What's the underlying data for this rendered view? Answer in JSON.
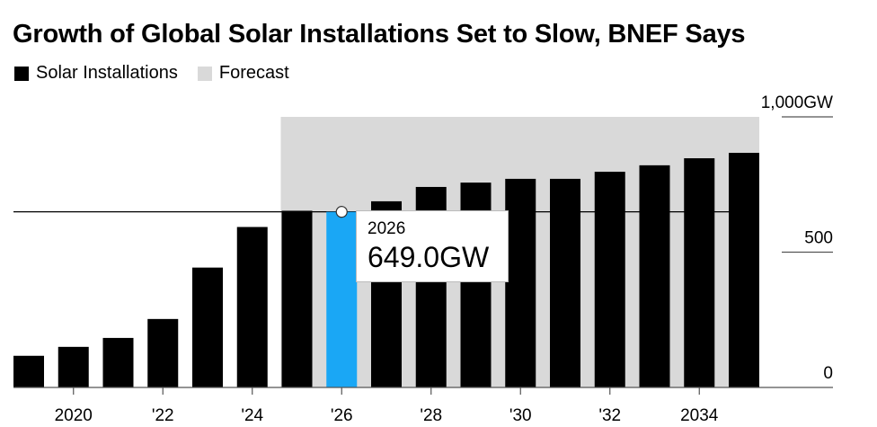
{
  "title": "Growth of Global Solar Installations Set to Slow, BNEF Says",
  "legend": [
    {
      "label": "Solar Installations",
      "color": "#000000"
    },
    {
      "label": "Forecast",
      "color": "#d9d9d9"
    }
  ],
  "tooltip": {
    "year": "2026",
    "value": "649.0GW"
  },
  "colors": {
    "bar": "#000000",
    "highlight": "#1aa7f5",
    "forecast_band": "#d9d9d9"
  },
  "chart_data": {
    "type": "bar",
    "title": "Growth of Global Solar Installations Set to Slow, BNEF Says",
    "xlabel": "",
    "ylabel": "GW",
    "categories": [
      "2019",
      "2020",
      "2021",
      "2022",
      "2023",
      "2024",
      "2025",
      "2026",
      "2027",
      "2028",
      "2029",
      "2030",
      "2031",
      "2032",
      "2033",
      "2034",
      "2035"
    ],
    "series": [
      {
        "name": "Solar Installations",
        "values": [
          117,
          150,
          183,
          253,
          443,
          593,
          653,
          649,
          688,
          741,
          757,
          771,
          771,
          797,
          821,
          847,
          867
        ]
      }
    ],
    "forecast_start": "2025",
    "forecast_end": "2035",
    "highlight": {
      "category": "2026",
      "value": 649.0
    },
    "reference_line": 649.0,
    "ylim": [
      0,
      1000
    ],
    "y_ticks": [
      {
        "value": 1000,
        "label": "1,000GW"
      },
      {
        "value": 500,
        "label": "500"
      },
      {
        "value": 0,
        "label": "0"
      }
    ],
    "x_ticks": [
      {
        "category": "2020",
        "label": "2020"
      },
      {
        "category": "2022",
        "label": "'22"
      },
      {
        "category": "2024",
        "label": "'24"
      },
      {
        "category": "2026",
        "label": "'26"
      },
      {
        "category": "2028",
        "label": "'28"
      },
      {
        "category": "2030",
        "label": "'30"
      },
      {
        "category": "2032",
        "label": "'32"
      },
      {
        "category": "2034",
        "label": "2034"
      }
    ],
    "grid": false,
    "legend_position": "top-left",
    "y_axis_position": "right"
  }
}
